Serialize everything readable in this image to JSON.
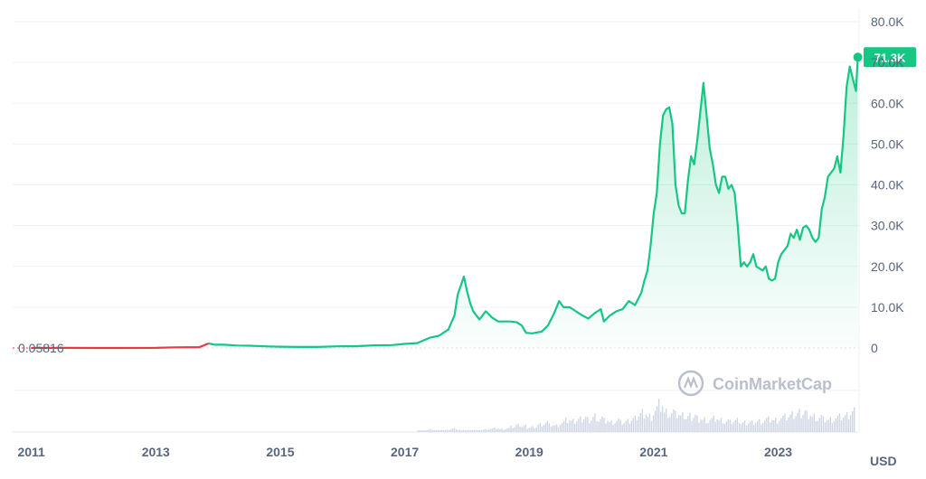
{
  "chart_data": {
    "type": "area",
    "unit_label": "USD",
    "watermark": "CoinMarketCap",
    "start_label": "0.05816",
    "current_label": "71.3K",
    "colors": {
      "line": "#16c784",
      "start_segment": "#ea3943",
      "badge": "#16c784",
      "grid": "#eff2f5",
      "volume": "#cfd6e4"
    },
    "ylim": [
      0,
      80000
    ],
    "y_ticks": [
      {
        "value": 80000,
        "label": "80.0K"
      },
      {
        "value": 70000,
        "label": "70.0K"
      },
      {
        "value": 60000,
        "label": "60.0K"
      },
      {
        "value": 50000,
        "label": "50.0K"
      },
      {
        "value": 40000,
        "label": "40.0K"
      },
      {
        "value": 30000,
        "label": "30.0K"
      },
      {
        "value": 20000,
        "label": "20.0K"
      },
      {
        "value": 10000,
        "label": "10.0K"
      },
      {
        "value": 0,
        "label": "0"
      }
    ],
    "xlim": [
      2010.7,
      2024.3
    ],
    "x_ticks": [
      {
        "value": 2011,
        "label": "2011"
      },
      {
        "value": 2013,
        "label": "2013"
      },
      {
        "value": 2015,
        "label": "2015"
      },
      {
        "value": 2017,
        "label": "2017"
      },
      {
        "value": 2019,
        "label": "2019"
      },
      {
        "value": 2021,
        "label": "2021"
      },
      {
        "value": 2023,
        "label": "2023"
      }
    ],
    "series": [
      {
        "x": [
          2011.0,
          2011.5,
          2012.0,
          2012.5,
          2013.0,
          2013.3,
          2013.7,
          2013.85,
          2013.95,
          2014.1,
          2014.3,
          2014.5,
          2014.8,
          2015.0,
          2015.3,
          2015.6,
          2015.9,
          2016.2,
          2016.5,
          2016.8,
          2017.0,
          2017.2,
          2017.4,
          2017.55,
          2017.7,
          2017.8,
          2017.85,
          2017.95,
          2018.0,
          2018.05,
          2018.1,
          2018.2,
          2018.3,
          2018.4,
          2018.5,
          2018.6,
          2018.7,
          2018.8,
          2018.88,
          2018.95,
          2019.05,
          2019.2,
          2019.3,
          2019.4,
          2019.48,
          2019.55,
          2019.65,
          2019.75,
          2019.85,
          2019.95,
          2020.05,
          2020.15,
          2020.2,
          2020.3,
          2020.4,
          2020.5,
          2020.6,
          2020.7,
          2020.8,
          2020.85,
          2020.9,
          2020.95,
          2021.0,
          2021.05,
          2021.1,
          2021.15,
          2021.2,
          2021.25,
          2021.3,
          2021.35,
          2021.4,
          2021.45,
          2021.5,
          2021.55,
          2021.6,
          2021.65,
          2021.7,
          2021.75,
          2021.8,
          2021.85,
          2021.9,
          2021.95,
          2022.0,
          2022.05,
          2022.1,
          2022.15,
          2022.2,
          2022.25,
          2022.3,
          2022.35,
          2022.4,
          2022.45,
          2022.5,
          2022.55,
          2022.6,
          2022.65,
          2022.7,
          2022.75,
          2022.8,
          2022.85,
          2022.9,
          2022.95,
          2023.0,
          2023.05,
          2023.1,
          2023.15,
          2023.2,
          2023.25,
          2023.3,
          2023.35,
          2023.4,
          2023.45,
          2023.5,
          2023.55,
          2023.6,
          2023.65,
          2023.7,
          2023.75,
          2023.8,
          2023.85,
          2023.9,
          2023.95,
          2024.0,
          2024.05,
          2024.1,
          2024.15,
          2024.2,
          2024.25,
          2024.28
        ],
        "y": [
          0.06,
          15,
          8,
          10,
          20,
          150,
          200,
          1100,
          800,
          800,
          600,
          550,
          380,
          300,
          250,
          250,
          400,
          420,
          650,
          700,
          1000,
          1200,
          2500,
          3000,
          4500,
          8000,
          13000,
          17500,
          14000,
          11000,
          9000,
          7000,
          9000,
          7500,
          6500,
          6500,
          6500,
          6300,
          5500,
          3700,
          3600,
          4000,
          5500,
          8500,
          11500,
          10000,
          10000,
          9000,
          8000,
          7200,
          8500,
          9500,
          6500,
          8000,
          9000,
          9500,
          11500,
          10500,
          13500,
          16500,
          19000,
          25000,
          33000,
          38000,
          50000,
          57000,
          58500,
          59000,
          55000,
          40000,
          35000,
          33000,
          33000,
          41000,
          47000,
          45000,
          51000,
          58000,
          65000,
          57000,
          49000,
          45000,
          40000,
          38000,
          42000,
          42000,
          39000,
          40000,
          38000,
          30000,
          20000,
          21000,
          20000,
          21000,
          23000,
          20000,
          19500,
          19000,
          20000,
          17000,
          16500,
          17000,
          21000,
          23000,
          24000,
          25000,
          28000,
          27000,
          29000,
          26500,
          29500,
          30000,
          29000,
          27000,
          26000,
          27000,
          34000,
          37000,
          42000,
          43000,
          44000,
          47000,
          43000,
          52000,
          64000,
          69000,
          66000,
          63000,
          71300
        ]
      }
    ],
    "volume": [
      0.02,
      0.05,
      0.08,
      0.04,
      0.03,
      0.06,
      0.1,
      0.07,
      0.05,
      0.04,
      0.06,
      0.05,
      0.08,
      0.1,
      0.12,
      0.09,
      0.11,
      0.15,
      0.2,
      0.18,
      0.14,
      0.16,
      0.25,
      0.3,
      0.22,
      0.2,
      0.28,
      0.35,
      0.32,
      0.38,
      0.45,
      0.4,
      0.5,
      0.42,
      0.36,
      0.3,
      0.34,
      0.28,
      0.32,
      0.4,
      0.55,
      0.62,
      0.5,
      0.7,
      0.85,
      0.6,
      0.58,
      0.52,
      0.48,
      0.46,
      0.5,
      0.44,
      0.4,
      0.38,
      0.42,
      0.36,
      0.32,
      0.3,
      0.34,
      0.28,
      0.3,
      0.32,
      0.35,
      0.38,
      0.4,
      0.36,
      0.42,
      0.45,
      0.5,
      0.56,
      0.62,
      0.58,
      0.5,
      0.46,
      0.4,
      0.38,
      0.42,
      0.45,
      0.48,
      0.6
    ]
  }
}
